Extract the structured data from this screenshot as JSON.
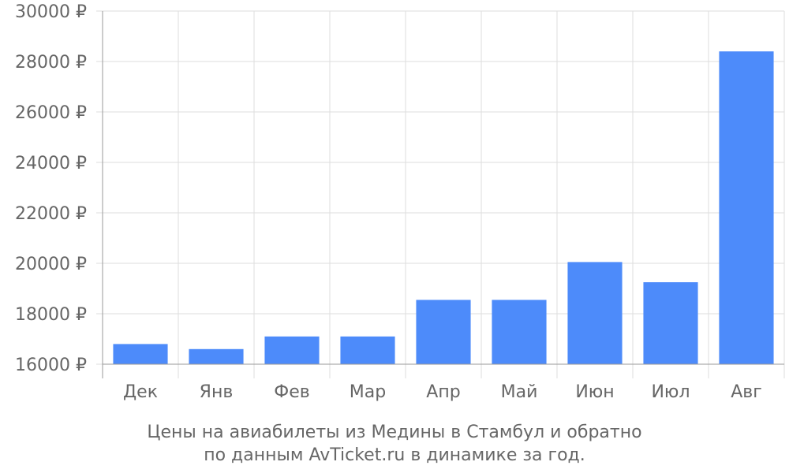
{
  "chart_data": {
    "type": "bar",
    "categories": [
      "Дек",
      "Янв",
      "Фев",
      "Мар",
      "Апр",
      "Май",
      "Июн",
      "Июл",
      "Авг"
    ],
    "values": [
      16800,
      16600,
      17100,
      17100,
      18550,
      18550,
      20050,
      19250,
      28400
    ],
    "ylim": [
      16000,
      30000
    ],
    "y_ticks": [
      16000,
      18000,
      20000,
      22000,
      24000,
      26000,
      28000,
      30000
    ],
    "y_tick_labels": [
      "16000 ₽",
      "18000 ₽",
      "20000 ₽",
      "22000 ₽",
      "24000 ₽",
      "26000 ₽",
      "28000 ₽",
      "30000 ₽"
    ],
    "grid": true,
    "bar_color": "#4d8bfa",
    "caption_lines": [
      "Цены на авиабилеты из Медины в Стамбул и обратно",
      "по данным AvTicket.ru в динамике за год."
    ]
  }
}
